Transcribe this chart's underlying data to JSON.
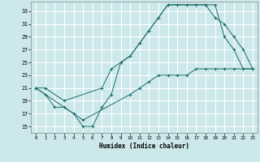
{
  "xlabel": "Humidex (Indice chaleur)",
  "bg_color": "#cce8eb",
  "line_color": "#1a6b6b",
  "grid_color": "#ffffff",
  "xlim": [
    -0.5,
    23.5
  ],
  "ylim": [
    14.0,
    34.5
  ],
  "yticks": [
    15,
    17,
    19,
    21,
    23,
    25,
    27,
    29,
    31,
    33
  ],
  "xticks": [
    0,
    1,
    2,
    3,
    4,
    5,
    6,
    7,
    8,
    9,
    10,
    11,
    12,
    13,
    14,
    15,
    16,
    17,
    18,
    19,
    20,
    21,
    22,
    23
  ],
  "line1_x": [
    0,
    1,
    2,
    3,
    4,
    5,
    6,
    7,
    8,
    9,
    10,
    11,
    12,
    13,
    14,
    15,
    16,
    17,
    18,
    19,
    20,
    21,
    22,
    23
  ],
  "line1_y": [
    21,
    20,
    18,
    18,
    17,
    15,
    15,
    18,
    20,
    25,
    26,
    28,
    30,
    32,
    34,
    34,
    34,
    34,
    34,
    34,
    29,
    27,
    24,
    24
  ],
  "line2_x": [
    0,
    1,
    3,
    7,
    8,
    9,
    10,
    11,
    12,
    13,
    14,
    15,
    16,
    17,
    18,
    19,
    20,
    21,
    22,
    23
  ],
  "line2_y": [
    21,
    21,
    19,
    21,
    24,
    25,
    26,
    28,
    30,
    32,
    34,
    34,
    34,
    34,
    34,
    32,
    31,
    29,
    27,
    24
  ],
  "line3_x": [
    0,
    5,
    10,
    11,
    12,
    13,
    14,
    15,
    16,
    17,
    18,
    19,
    20,
    21,
    22,
    23
  ],
  "line3_y": [
    21,
    16,
    20,
    21,
    22,
    23,
    23,
    23,
    23,
    24,
    24,
    24,
    24,
    24,
    24,
    24
  ],
  "marker": "+"
}
